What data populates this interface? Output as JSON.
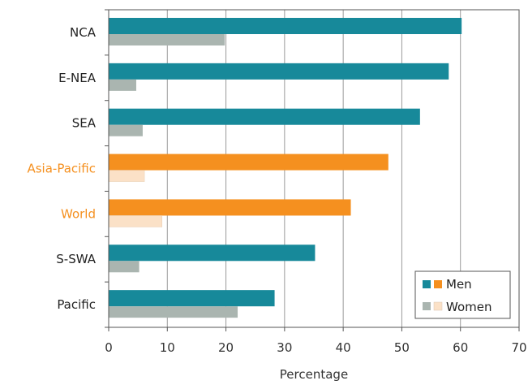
{
  "chart_data": {
    "type": "bar",
    "orientation": "horizontal",
    "categories": [
      "NCA",
      "E-NEA",
      "SEA",
      "Asia-Pacific",
      "World",
      "S-SWA",
      "Pacific"
    ],
    "highlighted_categories": [
      "Asia-Pacific",
      "World"
    ],
    "series": [
      {
        "name": "Men",
        "values": [
          60.2,
          58.0,
          53.1,
          47.7,
          41.3,
          35.2,
          28.3
        ]
      },
      {
        "name": "Women",
        "values": [
          19.8,
          4.7,
          5.8,
          6.1,
          9.1,
          5.2,
          22.0
        ]
      }
    ],
    "xlabel": "Percentage",
    "ylabel": "",
    "xlim": [
      0,
      70
    ],
    "xticks": [
      "0",
      "10",
      "20",
      "30",
      "40",
      "50",
      "60",
      "70"
    ],
    "grid": true,
    "legend_position": "bottom-right",
    "colors": {
      "men_regular": "#17899a",
      "men_highlight": "#f5901f",
      "women_regular": "#aab5b0",
      "women_highlight": "#fbe1c7",
      "highlight_label": "#f5901f",
      "label": "#222222",
      "grid": "#9a9a9a",
      "axis": "#555555"
    }
  }
}
